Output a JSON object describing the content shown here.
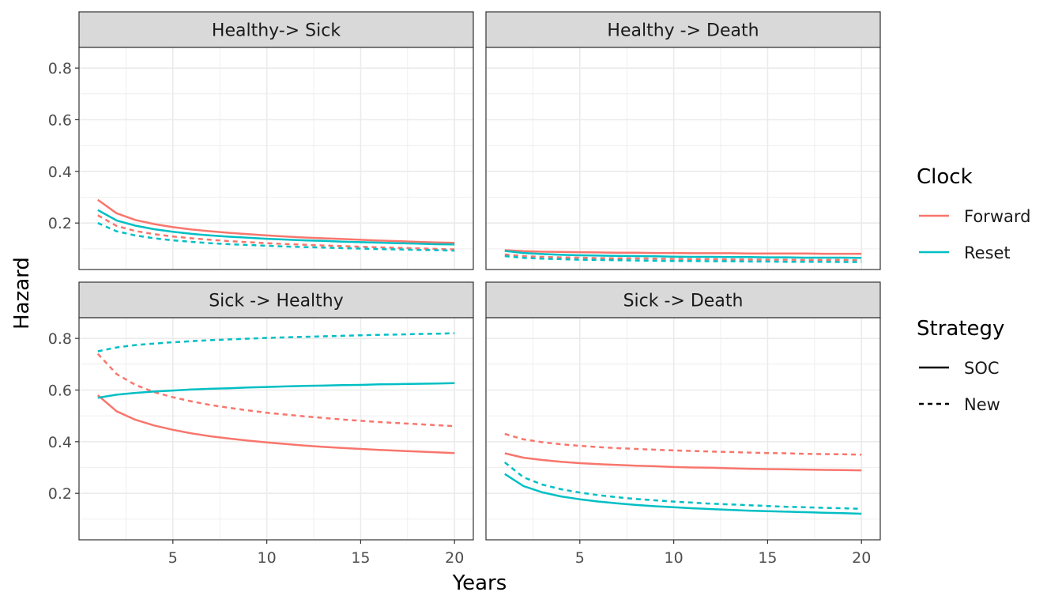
{
  "chart_data": {
    "type": "line",
    "xlabel": "Years",
    "ylabel": "Hazard",
    "x": [
      1,
      2,
      3,
      4,
      5,
      6,
      7,
      8,
      9,
      10,
      11,
      12,
      13,
      14,
      15,
      16,
      17,
      18,
      19,
      20
    ],
    "xlim": [
      0,
      21
    ],
    "ylim": [
      0.02,
      0.88
    ],
    "x_ticks": [
      "5",
      "10",
      "15",
      "20"
    ],
    "y_ticks": [
      "0.2",
      "0.4",
      "0.6",
      "0.8"
    ],
    "grid": true,
    "legend": {
      "placement": "right",
      "clock": {
        "title": "Clock",
        "items": [
          {
            "label": "Forward",
            "color": "#F8766D"
          },
          {
            "label": "Reset",
            "color": "#00BFC4"
          }
        ]
      },
      "strategy": {
        "title": "Strategy",
        "items": [
          {
            "label": "SOC",
            "line": "solid"
          },
          {
            "label": "New",
            "line": "dashed"
          }
        ]
      }
    },
    "panels": [
      {
        "title": "Healthy-> Sick",
        "series": [
          {
            "clock": "Forward",
            "strategy": "SOC",
            "values": [
              0.29,
              0.238,
              0.212,
              0.196,
              0.184,
              0.175,
              0.168,
              0.162,
              0.157,
              0.152,
              0.148,
              0.144,
              0.141,
              0.138,
              0.135,
              0.132,
              0.13,
              0.127,
              0.125,
              0.123
            ]
          },
          {
            "clock": "Forward",
            "strategy": "New",
            "values": [
              0.23,
              0.189,
              0.169,
              0.157,
              0.148,
              0.141,
              0.135,
              0.13,
              0.126,
              0.122,
              0.119,
              0.116,
              0.113,
              0.111,
              0.108,
              0.106,
              0.104,
              0.102,
              0.1,
              0.098
            ]
          },
          {
            "clock": "Reset",
            "strategy": "SOC",
            "values": [
              0.25,
              0.21,
              0.19,
              0.176,
              0.166,
              0.158,
              0.152,
              0.147,
              0.143,
              0.139,
              0.136,
              0.133,
              0.131,
              0.128,
              0.126,
              0.124,
              0.122,
              0.12,
              0.118,
              0.117
            ]
          },
          {
            "clock": "Reset",
            "strategy": "New",
            "values": [
              0.2,
              0.168,
              0.152,
              0.141,
              0.133,
              0.127,
              0.122,
              0.118,
              0.115,
              0.112,
              0.109,
              0.107,
              0.105,
              0.103,
              0.101,
              0.099,
              0.098,
              0.096,
              0.095,
              0.093
            ]
          }
        ]
      },
      {
        "title": "Healthy -> Death",
        "series": [
          {
            "clock": "Forward",
            "strategy": "SOC",
            "values": [
              0.095,
              0.091,
              0.089,
              0.088,
              0.087,
              0.086,
              0.085,
              0.085,
              0.084,
              0.084,
              0.083,
              0.083,
              0.083,
              0.082,
              0.082,
              0.082,
              0.082,
              0.081,
              0.081,
              0.081
            ]
          },
          {
            "clock": "Forward",
            "strategy": "New",
            "values": [
              0.078,
              0.072,
              0.069,
              0.067,
              0.066,
              0.064,
              0.063,
              0.063,
              0.062,
              0.061,
              0.06,
              0.06,
              0.059,
              0.059,
              0.058,
              0.058,
              0.057,
              0.057,
              0.057,
              0.056
            ]
          },
          {
            "clock": "Reset",
            "strategy": "SOC",
            "values": [
              0.092,
              0.084,
              0.08,
              0.077,
              0.075,
              0.074,
              0.073,
              0.072,
              0.071,
              0.07,
              0.069,
              0.069,
              0.068,
              0.068,
              0.067,
              0.067,
              0.066,
              0.066,
              0.066,
              0.065
            ]
          },
          {
            "clock": "Reset",
            "strategy": "New",
            "values": [
              0.072,
              0.065,
              0.062,
              0.06,
              0.058,
              0.057,
              0.056,
              0.055,
              0.054,
              0.053,
              0.053,
              0.052,
              0.052,
              0.051,
              0.051,
              0.05,
              0.05,
              0.05,
              0.049,
              0.049
            ]
          }
        ]
      },
      {
        "title": "Sick -> Healthy",
        "series": [
          {
            "clock": "Forward",
            "strategy": "SOC",
            "values": [
              0.58,
              0.518,
              0.485,
              0.463,
              0.446,
              0.432,
              0.421,
              0.412,
              0.404,
              0.397,
              0.391,
              0.385,
              0.38,
              0.376,
              0.372,
              0.368,
              0.365,
              0.362,
              0.359,
              0.356
            ]
          },
          {
            "clock": "Forward",
            "strategy": "New",
            "values": [
              0.74,
              0.662,
              0.62,
              0.592,
              0.572,
              0.556,
              0.542,
              0.531,
              0.521,
              0.512,
              0.505,
              0.498,
              0.492,
              0.486,
              0.481,
              0.476,
              0.472,
              0.468,
              0.464,
              0.46
            ]
          },
          {
            "clock": "Reset",
            "strategy": "SOC",
            "values": [
              0.57,
              0.582,
              0.589,
              0.594,
              0.598,
              0.602,
              0.605,
              0.607,
              0.61,
              0.612,
              0.614,
              0.616,
              0.617,
              0.619,
              0.62,
              0.622,
              0.623,
              0.624,
              0.625,
              0.627
            ]
          },
          {
            "clock": "Reset",
            "strategy": "New",
            "values": [
              0.75,
              0.765,
              0.774,
              0.78,
              0.785,
              0.789,
              0.793,
              0.796,
              0.799,
              0.802,
              0.804,
              0.806,
              0.808,
              0.81,
              0.812,
              0.814,
              0.815,
              0.817,
              0.818,
              0.82
            ]
          }
        ]
      },
      {
        "title": "Sick -> Death",
        "series": [
          {
            "clock": "Forward",
            "strategy": "SOC",
            "values": [
              0.355,
              0.338,
              0.329,
              0.322,
              0.317,
              0.313,
              0.31,
              0.307,
              0.305,
              0.302,
              0.3,
              0.299,
              0.297,
              0.295,
              0.294,
              0.293,
              0.292,
              0.291,
              0.29,
              0.289
            ]
          },
          {
            "clock": "Forward",
            "strategy": "New",
            "values": [
              0.43,
              0.409,
              0.398,
              0.39,
              0.384,
              0.379,
              0.375,
              0.372,
              0.369,
              0.366,
              0.364,
              0.362,
              0.36,
              0.358,
              0.356,
              0.355,
              0.353,
              0.352,
              0.351,
              0.35
            ]
          },
          {
            "clock": "Reset",
            "strategy": "SOC",
            "values": [
              0.275,
              0.228,
              0.204,
              0.188,
              0.177,
              0.168,
              0.161,
              0.155,
              0.15,
              0.146,
              0.142,
              0.139,
              0.136,
              0.133,
              0.131,
              0.129,
              0.127,
              0.125,
              0.123,
              0.121
            ]
          },
          {
            "clock": "Reset",
            "strategy": "New",
            "values": [
              0.32,
              0.262,
              0.234,
              0.216,
              0.203,
              0.193,
              0.185,
              0.178,
              0.173,
              0.168,
              0.164,
              0.16,
              0.157,
              0.154,
              0.151,
              0.148,
              0.146,
              0.144,
              0.142,
              0.14
            ]
          }
        ]
      }
    ]
  }
}
